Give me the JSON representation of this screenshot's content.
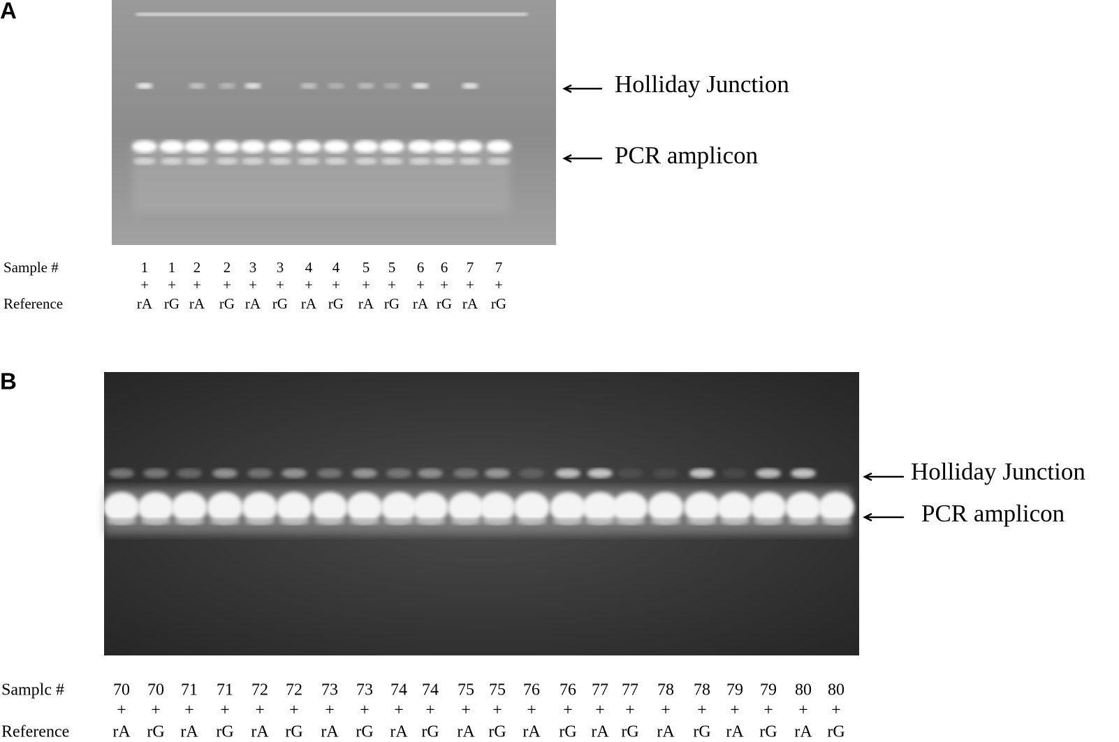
{
  "panels": [
    {
      "label": "A",
      "annotations": {
        "junction": "Holliday Junction",
        "amplicon": "PCR amplicon"
      },
      "row_labels": {
        "sample": "Sample #",
        "reference": "Reference"
      },
      "lanes": [
        {
          "sample": "1",
          "join": "+",
          "reference": "rA"
        },
        {
          "sample": "1",
          "join": "+",
          "reference": "rG"
        },
        {
          "sample": "2",
          "join": "+",
          "reference": "rA"
        },
        {
          "sample": "2",
          "join": "+",
          "reference": "rG"
        },
        {
          "sample": "3",
          "join": "+",
          "reference": "rA"
        },
        {
          "sample": "3",
          "join": "+",
          "reference": "rG"
        },
        {
          "sample": "4",
          "join": "+",
          "reference": "rA"
        },
        {
          "sample": "4",
          "join": "+",
          "reference": "rG"
        },
        {
          "sample": "5",
          "join": "+",
          "reference": "rA"
        },
        {
          "sample": "5",
          "join": "+",
          "reference": "rG"
        },
        {
          "sample": "6",
          "join": "+",
          "reference": "rA"
        },
        {
          "sample": "6",
          "join": "+",
          "reference": "rG"
        },
        {
          "sample": "7",
          "join": "+",
          "reference": "rA"
        },
        {
          "sample": "7",
          "join": "+",
          "reference": "rG"
        }
      ]
    },
    {
      "label": "B",
      "annotations": {
        "junction": "Holliday Junction",
        "amplicon": "PCR amplicon"
      },
      "row_labels": {
        "sample": "Samplc #",
        "reference": "Reference"
      },
      "lanes": [
        {
          "sample": "70",
          "join": "+",
          "reference": "rA"
        },
        {
          "sample": "70",
          "join": "+",
          "reference": "rG"
        },
        {
          "sample": "71",
          "join": "+",
          "reference": "rA"
        },
        {
          "sample": "71",
          "join": "+",
          "reference": "rG"
        },
        {
          "sample": "72",
          "join": "+",
          "reference": "rA"
        },
        {
          "sample": "72",
          "join": "+",
          "reference": "rG"
        },
        {
          "sample": "73",
          "join": "+",
          "reference": "rA"
        },
        {
          "sample": "73",
          "join": "+",
          "reference": "rG"
        },
        {
          "sample": "74",
          "join": "+",
          "reference": "rA"
        },
        {
          "sample": "74",
          "join": "+",
          "reference": "rG"
        },
        {
          "sample": "75",
          "join": "+",
          "reference": "rA"
        },
        {
          "sample": "75",
          "join": "+",
          "reference": "rG"
        },
        {
          "sample": "76",
          "join": "+",
          "reference": "rA"
        },
        {
          "sample": "76",
          "join": "+",
          "reference": "rG"
        },
        {
          "sample": "77",
          "join": "+",
          "reference": "rA"
        },
        {
          "sample": "77",
          "join": "+",
          "reference": "rG"
        },
        {
          "sample": "78",
          "join": "+",
          "reference": "rA"
        },
        {
          "sample": "78",
          "join": "+",
          "reference": "rG"
        },
        {
          "sample": "79",
          "join": "+",
          "reference": "rA"
        },
        {
          "sample": "79",
          "join": "+",
          "reference": "rG"
        },
        {
          "sample": "80",
          "join": "+",
          "reference": "rA"
        },
        {
          "sample": "80",
          "join": "+",
          "reference": "rG"
        }
      ]
    }
  ]
}
